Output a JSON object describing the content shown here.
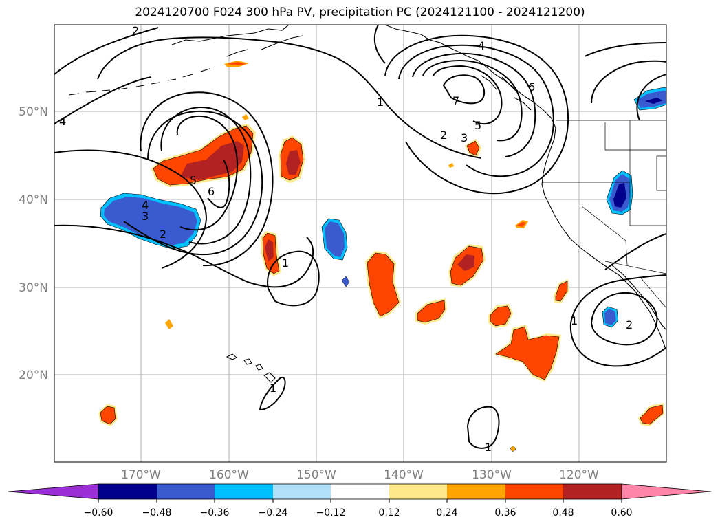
{
  "title": "2024120700 F024 300 hPa PV, precipitation PC (2024121100 - 2024121200)",
  "map": {
    "lon_ticks": [
      "170°W",
      "160°W",
      "150°W",
      "140°W",
      "130°W",
      "120°W"
    ],
    "lat_ticks": [
      "50°N",
      "40°N",
      "30°N",
      "20°N"
    ],
    "contour_labels": [
      "2",
      "4",
      "1",
      "4",
      "6",
      "7",
      "5",
      "2",
      "3",
      "5",
      "6",
      "4",
      "3",
      "2",
      "1",
      "1",
      "1",
      "2",
      "1"
    ]
  },
  "colorbar": {
    "ticks": [
      "−0.60",
      "−0.48",
      "−0.36",
      "−0.24",
      "−0.12",
      "0.12",
      "0.24",
      "0.36",
      "0.48",
      "0.60"
    ],
    "colors": [
      "#9b2fd6",
      "#00008c",
      "#3a5bd0",
      "#00bfff",
      "#b0e0fa",
      "#ffffff",
      "#ffe98a",
      "#ffa500",
      "#ff4500",
      "#b22222",
      "#ff86a8"
    ]
  }
}
